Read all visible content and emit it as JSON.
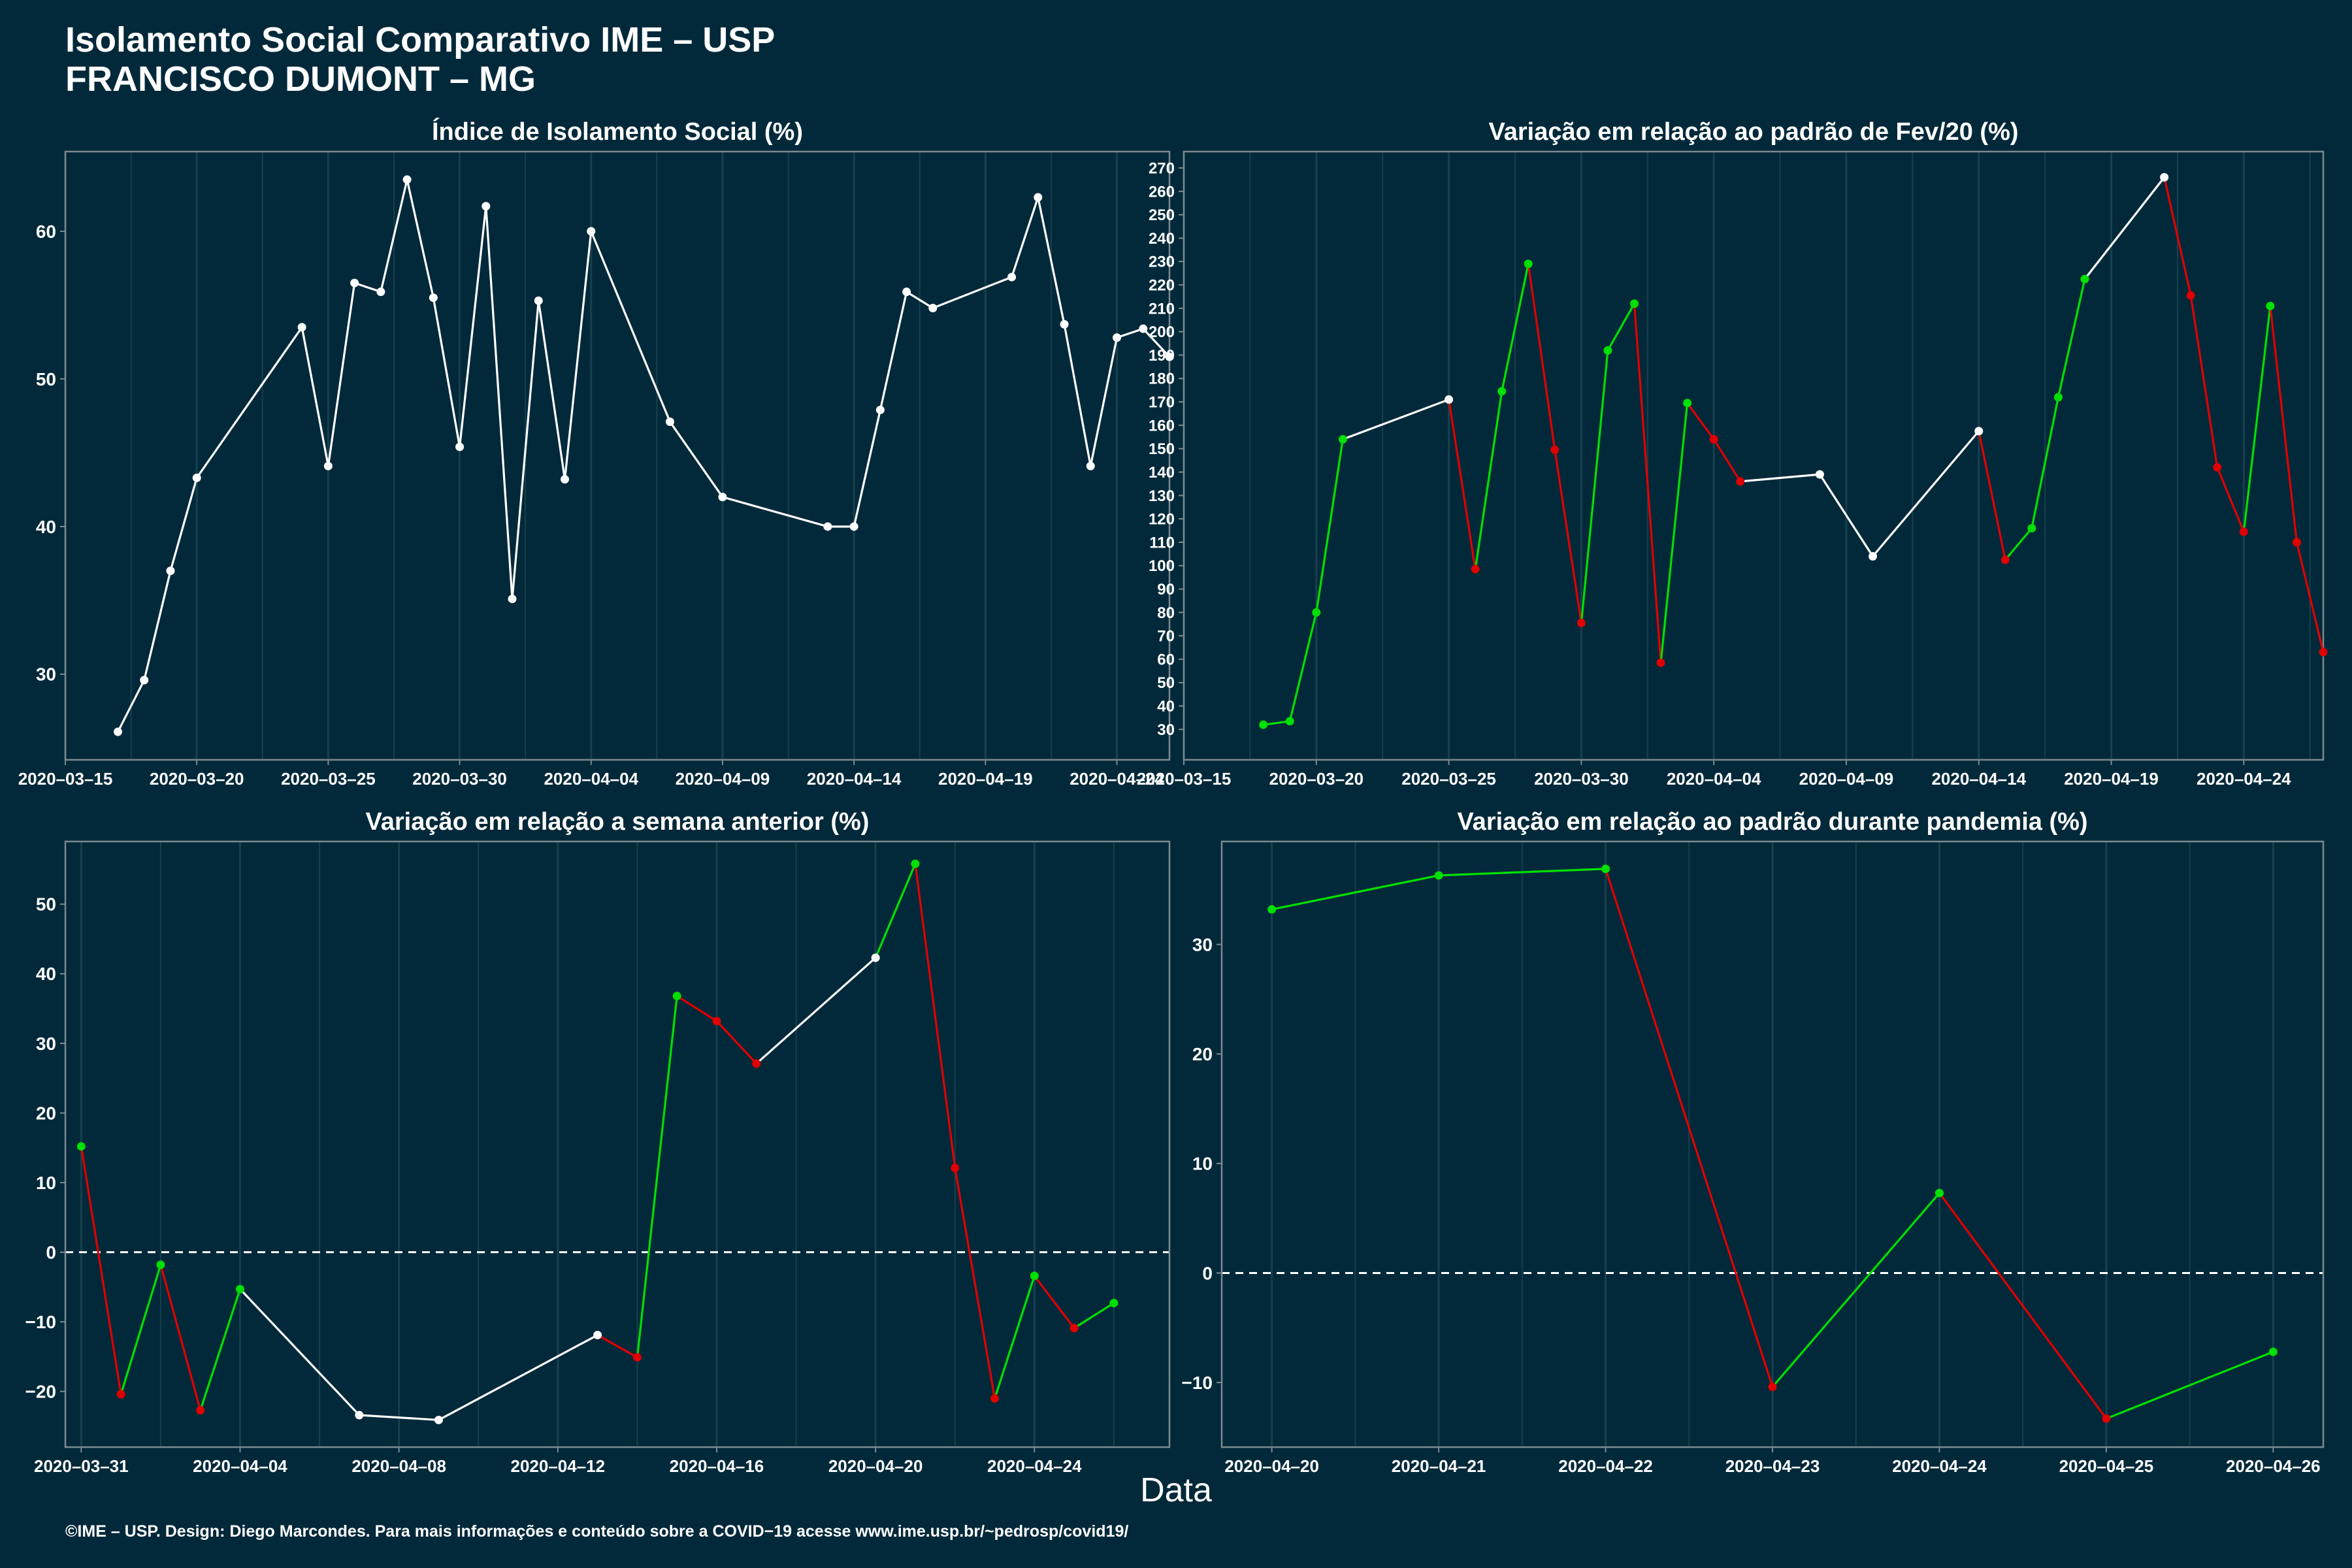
{
  "header": {
    "title_line1": "Isolamento Social Comparativo IME – USP",
    "title_line2": "FRANCISCO DUMONT – MG"
  },
  "x_axis_label": "Data",
  "caption": "©IME – USP. Design: Diego Marcondes. Para mais informações e conteúdo sobre a COVID−19 acesse www.ime.usp.br/~pedrosp/covid19/",
  "colors": {
    "background": "#02293a",
    "frame": "#7c8a8f",
    "grid": "#17404e",
    "neutral": "#ffffff",
    "up": "#00e000",
    "down": "#e00000"
  },
  "chart_data": [
    {
      "type": "line",
      "title": "Índice de Isolamento Social (%)",
      "color_mode": "white",
      "xlim": [
        "2020-03-15",
        "2020-04-26"
      ],
      "x_ticks": [
        "2020-03-15",
        "2020-03-20",
        "2020-03-25",
        "2020-03-30",
        "2020-04-04",
        "2020-04-09",
        "2020-04-14",
        "2020-04-19",
        "2020-04-24"
      ],
      "ylim": [
        24.2,
        65.4
      ],
      "y_ticks": [
        30,
        40,
        50,
        60
      ],
      "grid": true,
      "zero_line": false,
      "x": [
        "2020-03-17",
        "2020-03-18",
        "2020-03-19",
        "2020-03-20",
        "2020-03-24",
        "2020-03-25",
        "2020-03-26",
        "2020-03-27",
        "2020-03-28",
        "2020-03-29",
        "2020-03-30",
        "2020-03-31",
        "2020-04-01",
        "2020-04-02",
        "2020-04-03",
        "2020-04-04",
        "2020-04-07",
        "2020-04-09",
        "2020-04-13",
        "2020-04-14",
        "2020-04-15",
        "2020-04-16",
        "2020-04-17",
        "2020-04-20",
        "2020-04-21",
        "2020-04-22",
        "2020-04-23",
        "2020-04-24",
        "2020-04-25",
        "2020-04-26"
      ],
      "y": [
        26.1,
        29.6,
        37.0,
        43.3,
        53.5,
        44.1,
        56.5,
        55.9,
        63.5,
        55.5,
        45.4,
        61.7,
        35.1,
        55.3,
        43.2,
        60.0,
        47.1,
        42.0,
        40.0,
        40.0,
        47.9,
        55.9,
        54.8,
        56.9,
        62.3,
        53.7,
        44.1,
        52.8,
        53.4,
        51.5
      ]
    },
    {
      "type": "line",
      "title": "Variação em relação ao padrão de Fev/20 (%)",
      "color_mode": "daily",
      "xlim": [
        "2020-03-15",
        "2020-04-27"
      ],
      "x_ticks": [
        "2020-03-15",
        "2020-03-20",
        "2020-03-25",
        "2020-03-30",
        "2020-04-04",
        "2020-04-09",
        "2020-04-14",
        "2020-04-19",
        "2020-04-24"
      ],
      "ylim": [
        17,
        277
      ],
      "y_ticks": [
        30,
        40,
        50,
        60,
        70,
        80,
        90,
        100,
        110,
        120,
        130,
        140,
        150,
        160,
        170,
        180,
        190,
        200,
        210,
        220,
        230,
        240,
        250,
        260,
        270
      ],
      "grid": true,
      "zero_line": false,
      "x": [
        "2020-03-18",
        "2020-03-19",
        "2020-03-20",
        "2020-03-21",
        "2020-03-25",
        "2020-03-26",
        "2020-03-27",
        "2020-03-28",
        "2020-03-29",
        "2020-03-30",
        "2020-03-31",
        "2020-04-01",
        "2020-04-02",
        "2020-04-03",
        "2020-04-04",
        "2020-04-05",
        "2020-04-08",
        "2020-04-10",
        "2020-04-14",
        "2020-04-15",
        "2020-04-16",
        "2020-04-17",
        "2020-04-18",
        "2020-04-21",
        "2020-04-22",
        "2020-04-23",
        "2020-04-24",
        "2020-04-25",
        "2020-04-26",
        "2020-04-27"
      ],
      "y": [
        32,
        33.5,
        80,
        154,
        171,
        98.5,
        174.5,
        229,
        149.5,
        75.5,
        192,
        212,
        58.5,
        169.5,
        154,
        136,
        139,
        104,
        157.5,
        102.5,
        116,
        172,
        222.5,
        266,
        215.5,
        142,
        114.5,
        211,
        110,
        63
      ]
    },
    {
      "type": "line",
      "title": "Variação em relação a semana anterior (%)",
      "color_mode": "daily",
      "xlim": [
        "2020-03-30.6",
        "2020-04-27.4"
      ],
      "x_ticks": [
        "2020-03-31",
        "2020-04-04",
        "2020-04-08",
        "2020-04-12",
        "2020-04-16",
        "2020-04-20",
        "2020-04-24"
      ],
      "ylim": [
        -28,
        59
      ],
      "y_ticks": [
        -20,
        -10,
        0,
        10,
        20,
        30,
        40,
        50
      ],
      "grid": true,
      "zero_line": true,
      "x": [
        "2020-03-31",
        "2020-04-01",
        "2020-04-02",
        "2020-04-03",
        "2020-04-04",
        "2020-04-07",
        "2020-04-09",
        "2020-04-13",
        "2020-04-14",
        "2020-04-15",
        "2020-04-16",
        "2020-04-17",
        "2020-04-20",
        "2020-04-21",
        "2020-04-22",
        "2020-04-23",
        "2020-04-24",
        "2020-04-25",
        "2020-04-26"
      ],
      "y": [
        15.2,
        -20.4,
        -1.8,
        -22.7,
        -5.3,
        -23.4,
        -24.1,
        -11.9,
        -15.1,
        36.8,
        33.2,
        27.1,
        42.3,
        55.8,
        12.1,
        -21.0,
        -3.4,
        -10.9,
        -7.3
      ]
    },
    {
      "type": "line",
      "title": "Variação em relação ao padrão durante pandemia (%)",
      "color_mode": "daily",
      "xlim": [
        "2020-04-19.7",
        "2020-04-26.3"
      ],
      "x_ticks": [
        "2020-04-20",
        "2020-04-21",
        "2020-04-22",
        "2020-04-23",
        "2020-04-24",
        "2020-04-25",
        "2020-04-26"
      ],
      "ylim": [
        -15.9,
        39.4
      ],
      "y_ticks": [
        -10,
        0,
        10,
        20,
        30
      ],
      "grid": true,
      "zero_line": true,
      "x": [
        "2020-04-20",
        "2020-04-21",
        "2020-04-22",
        "2020-04-23",
        "2020-04-24",
        "2020-04-25",
        "2020-04-26"
      ],
      "y": [
        33.2,
        36.3,
        36.9,
        -10.4,
        7.3,
        -13.3,
        -7.2
      ]
    }
  ]
}
